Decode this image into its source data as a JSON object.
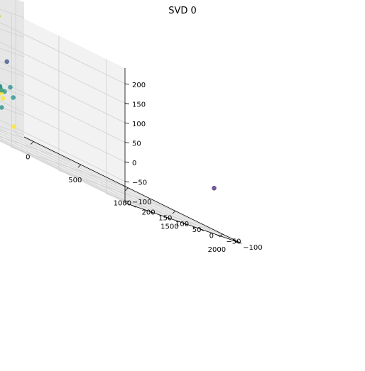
{
  "chart_data": {
    "type": "scatter",
    "projection": "3d",
    "title": "SVD 0",
    "colormap": "viridis",
    "xlabel": "",
    "ylabel": "",
    "zlabel": "",
    "xlim": [
      -100,
      2200
    ],
    "ylim": [
      -125,
      220
    ],
    "zlim": [
      -105,
      240
    ],
    "x_ticks": [
      0,
      500,
      1000,
      1500,
      2000
    ],
    "y_ticks": [
      -100,
      -50,
      0,
      50,
      100,
      150,
      200
    ],
    "z_ticks": [
      -100,
      -50,
      0,
      50,
      100,
      150,
      200
    ],
    "x_tick_labels": [
      "0",
      "500",
      "1000",
      "1500",
      "2000"
    ],
    "y_tick_labels": [
      "−100",
      "−50",
      "0",
      "50",
      "100",
      "150",
      "200"
    ],
    "z_tick_labels": [
      "−100",
      "−50",
      "0",
      "50",
      "100",
      "150",
      "200"
    ],
    "grid": true,
    "points": [
      {
        "x": 20,
        "y": -15,
        "z": 185,
        "color": "#a0da39"
      },
      {
        "x": 60,
        "y": 5,
        "z": 25,
        "color": "#21918c"
      },
      {
        "x": 90,
        "y": 0,
        "z": 10,
        "color": "#21918c"
      },
      {
        "x": 40,
        "y": 20,
        "z": 20,
        "color": "#21918c"
      },
      {
        "x": 120,
        "y": 10,
        "z": 5,
        "color": "#21918c"
      },
      {
        "x": 140,
        "y": 0,
        "z": 2,
        "color": "#21918c"
      },
      {
        "x": 70,
        "y": -10,
        "z": 0,
        "color": "#21918c"
      },
      {
        "x": 100,
        "y": 25,
        "z": -5,
        "color": "#21918c"
      },
      {
        "x": 80,
        "y": 40,
        "z": 60,
        "color": "#21918c"
      },
      {
        "x": 150,
        "y": 30,
        "z": 20,
        "color": "#21918c"
      },
      {
        "x": 160,
        "y": 60,
        "z": 50,
        "color": "#21918c"
      },
      {
        "x": 180,
        "y": 20,
        "z": -40,
        "color": "#21918c"
      },
      {
        "x": 200,
        "y": 80,
        "z": 15,
        "color": "#21918c"
      },
      {
        "x": 300,
        "y": 120,
        "z": 50,
        "color": "#21918c"
      },
      {
        "x": 160,
        "y": -20,
        "z": -5,
        "color": "#21918c"
      },
      {
        "x": 140,
        "y": 50,
        "z": 25,
        "color": "#21918c"
      },
      {
        "x": 200,
        "y": 0,
        "z": 20,
        "color": "#21918c"
      },
      {
        "x": 220,
        "y": 40,
        "z": 5,
        "color": "#21918c"
      },
      {
        "x": 60,
        "y": 30,
        "z": 10,
        "color": "#21918c"
      },
      {
        "x": 50,
        "y": 0,
        "z": -2,
        "color": "#21918c"
      },
      {
        "x": 30,
        "y": 5,
        "z": 4,
        "color": "#21918c"
      },
      {
        "x": 110,
        "y": 5,
        "z": 8,
        "color": "#21918c"
      },
      {
        "x": 250,
        "y": 120,
        "z": 110,
        "color": "#21918c"
      },
      {
        "x": 600,
        "y": 180,
        "z": 100,
        "color": "#21918c"
      },
      {
        "x": 700,
        "y": 150,
        "z": 100,
        "color": "#3b528b"
      },
      {
        "x": 0,
        "y": 0,
        "z": 0,
        "color": "#fde725"
      },
      {
        "x": 10,
        "y": 5,
        "z": 0,
        "color": "#fde725"
      },
      {
        "x": 20,
        "y": 10,
        "z": 5,
        "color": "#fde725"
      },
      {
        "x": 30,
        "y": 0,
        "z": 2,
        "color": "#fde725"
      },
      {
        "x": 40,
        "y": 5,
        "z": -3,
        "color": "#fde725"
      },
      {
        "x": 50,
        "y": 15,
        "z": 2,
        "color": "#fde725"
      },
      {
        "x": 60,
        "y": 5,
        "z": 0,
        "color": "#fde725"
      },
      {
        "x": 70,
        "y": 5,
        "z": 5,
        "color": "#fde725"
      },
      {
        "x": 80,
        "y": 10,
        "z": -2,
        "color": "#fde725"
      },
      {
        "x": 90,
        "y": 5,
        "z": 3,
        "color": "#fde725"
      },
      {
        "x": 100,
        "y": 0,
        "z": 0,
        "color": "#fde725"
      },
      {
        "x": 5,
        "y": 20,
        "z": 5,
        "color": "#fde725"
      },
      {
        "x": 15,
        "y": -5,
        "z": -5,
        "color": "#fde725"
      },
      {
        "x": 25,
        "y": 15,
        "z": -10,
        "color": "#fde725"
      },
      {
        "x": 35,
        "y": 10,
        "z": 10,
        "color": "#fde725"
      },
      {
        "x": 45,
        "y": -5,
        "z": 0,
        "color": "#fde725"
      },
      {
        "x": 55,
        "y": 20,
        "z": 8,
        "color": "#fde725"
      },
      {
        "x": 65,
        "y": -10,
        "z": -8,
        "color": "#fde725"
      },
      {
        "x": 75,
        "y": 25,
        "z": 0,
        "color": "#fde725"
      },
      {
        "x": 50,
        "y": -20,
        "z": -20,
        "color": "#fde725"
      },
      {
        "x": 80,
        "y": 30,
        "z": 15,
        "color": "#fde725"
      },
      {
        "x": 30,
        "y": 25,
        "z": -15,
        "color": "#fde725"
      },
      {
        "x": 130,
        "y": -30,
        "z": -80,
        "color": "#fde725"
      },
      {
        "x": 2000,
        "y": -100,
        "z": 5,
        "color": "#482475"
      }
    ]
  }
}
